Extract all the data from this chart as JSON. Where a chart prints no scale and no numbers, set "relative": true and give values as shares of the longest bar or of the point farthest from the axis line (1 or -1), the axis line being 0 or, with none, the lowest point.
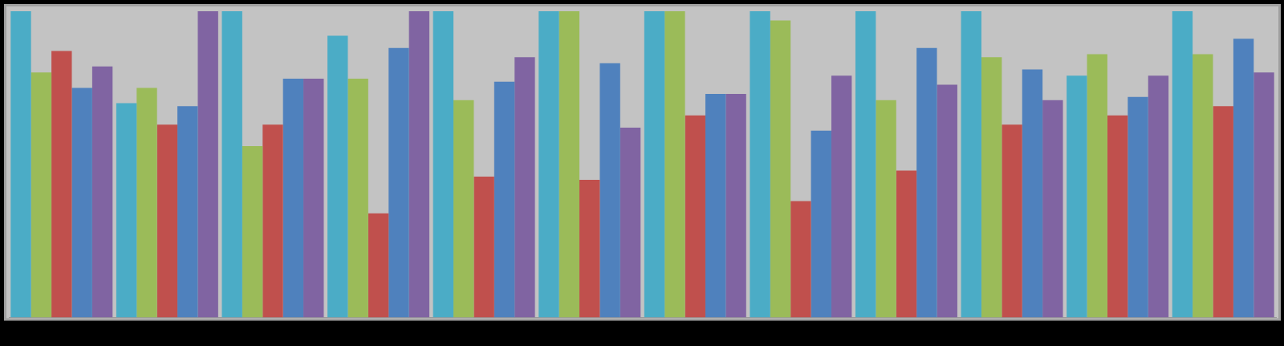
{
  "chart_data": {
    "type": "bar",
    "relative": true,
    "categories": [
      null,
      null,
      null,
      null,
      null,
      null,
      null,
      null,
      null,
      null,
      null,
      null
    ],
    "series": [
      {
        "color": "#4bacc6",
        "values": [
          1.0,
          0.7,
          1.0,
          0.92,
          1.0,
          1.0,
          1.0,
          1.0,
          1.0,
          1.0,
          0.79,
          1.0
        ]
      },
      {
        "color": "#9bbb59",
        "values": [
          0.8,
          0.75,
          0.56,
          0.78,
          0.71,
          1.0,
          1.0,
          0.97,
          0.71,
          0.85,
          0.86,
          0.86
        ]
      },
      {
        "color": "#c0504d",
        "values": [
          0.87,
          0.63,
          0.63,
          0.34,
          0.46,
          0.45,
          0.66,
          0.38,
          0.48,
          0.63,
          0.66,
          0.69
        ]
      },
      {
        "color": "#4f81bd",
        "values": [
          0.75,
          0.69,
          0.78,
          0.88,
          0.77,
          0.83,
          0.73,
          0.61,
          0.88,
          0.81,
          0.72,
          0.91
        ]
      },
      {
        "color": "#8064a2",
        "values": [
          0.82,
          1.0,
          0.78,
          1.0,
          0.85,
          0.62,
          0.73,
          0.79,
          0.76,
          0.71,
          0.79,
          0.8
        ]
      }
    ]
  }
}
